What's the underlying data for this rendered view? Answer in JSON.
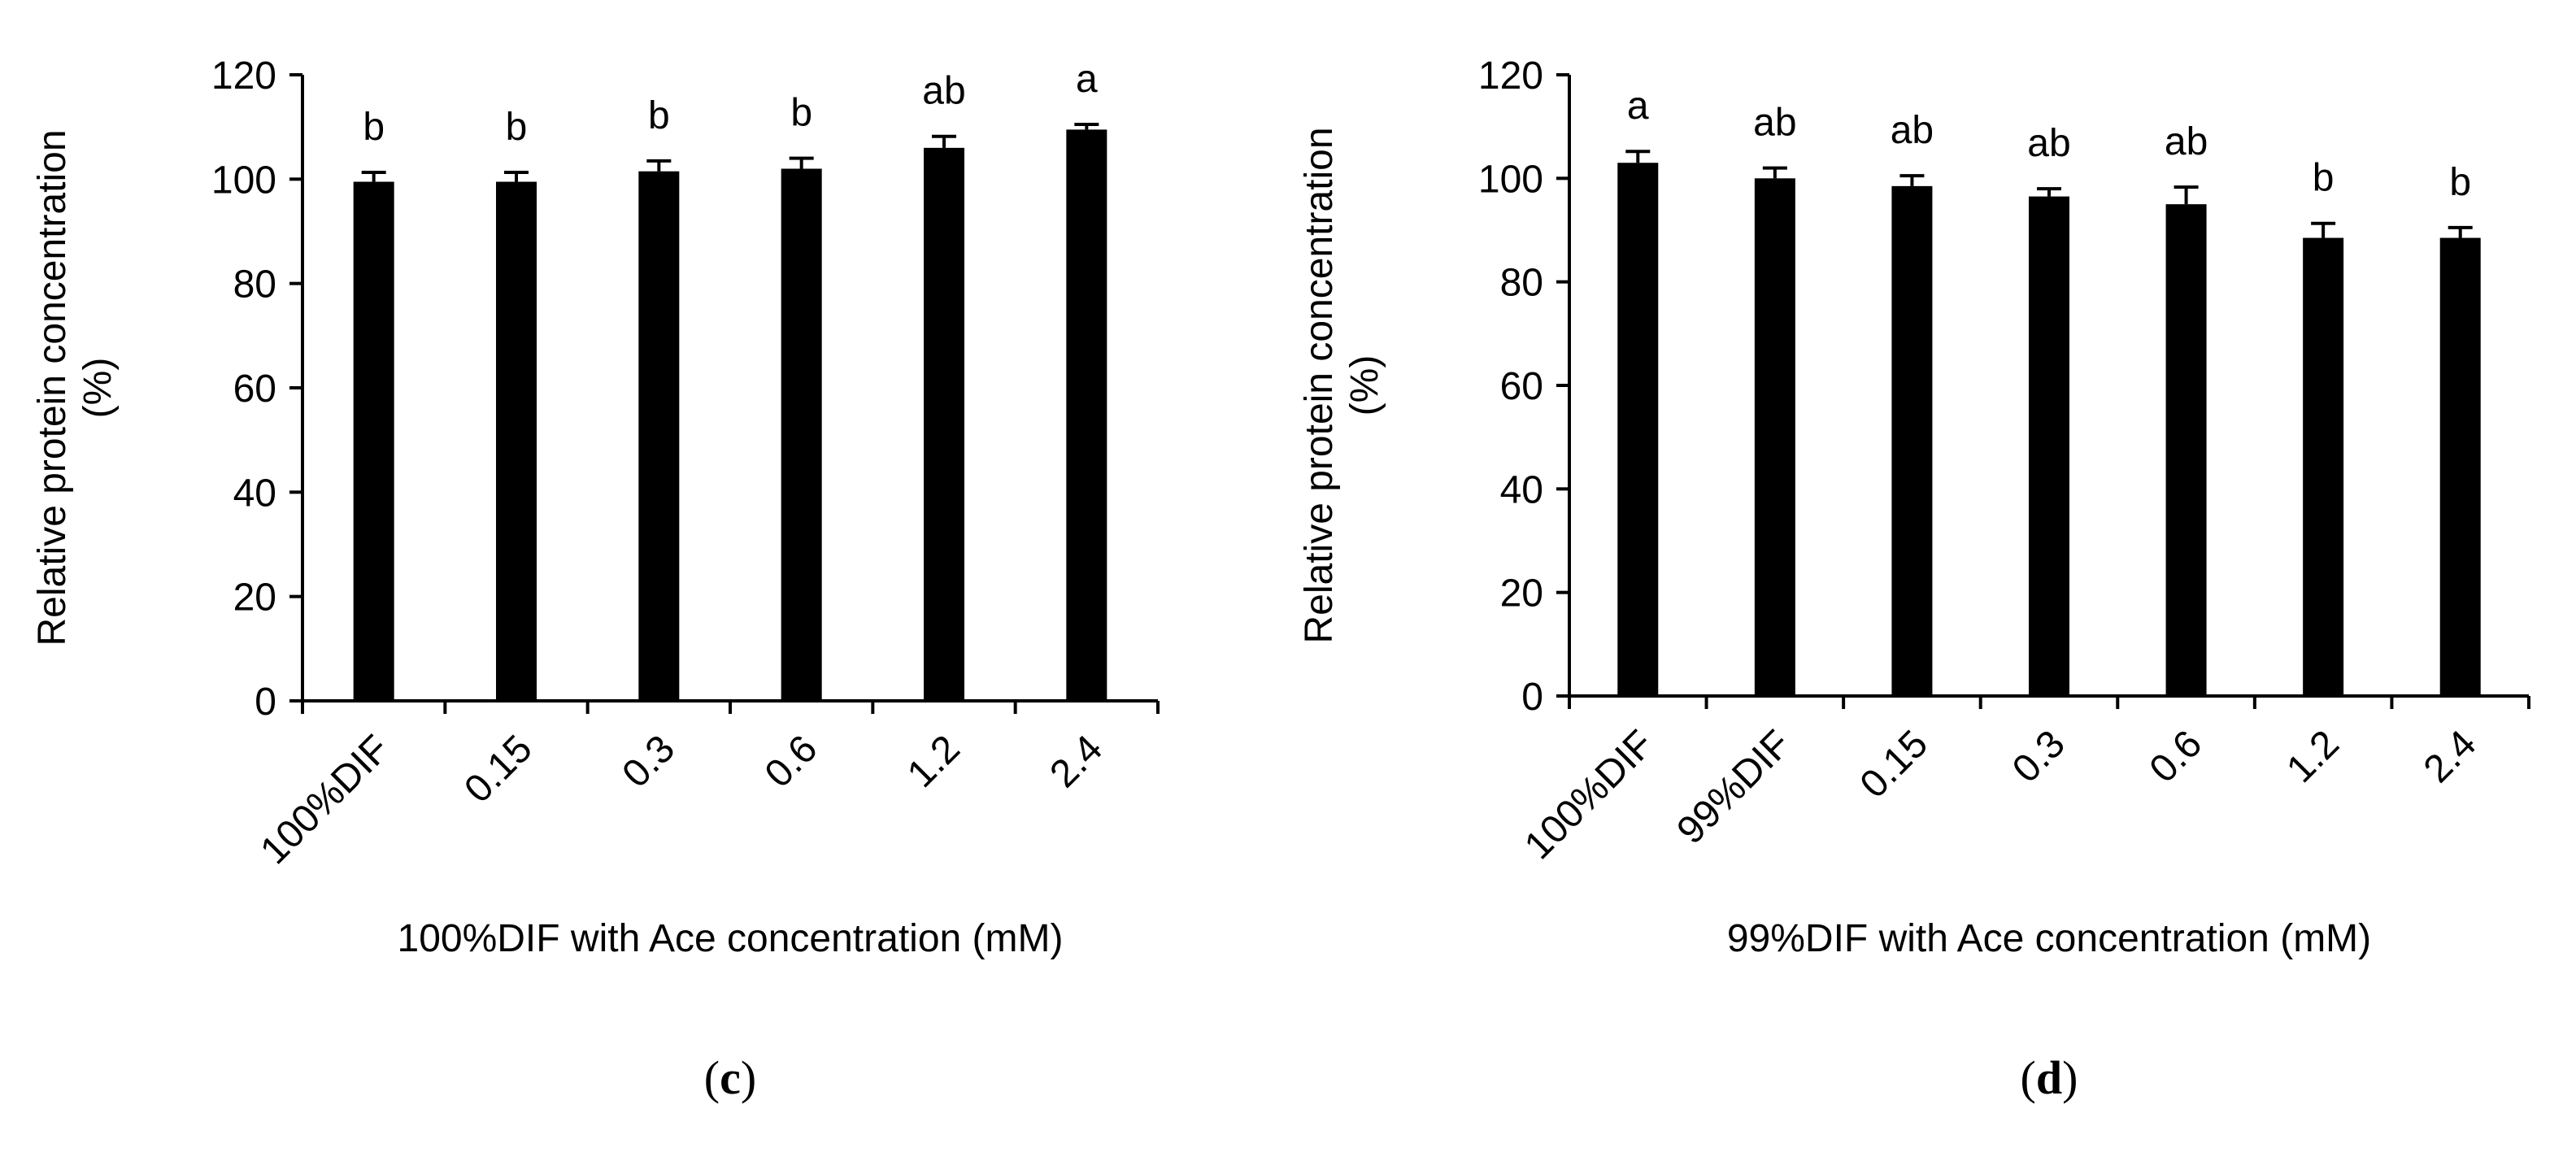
{
  "chart_data": [
    {
      "panel_label": "(c)",
      "panel_letter": "c",
      "type": "bar",
      "xlabel": "100%DIF with Ace concentration (mM)",
      "ylabel_line1": "Relative protein concentration",
      "ylabel_line2": "(%)",
      "ylim": [
        0,
        120
      ],
      "yticks": [
        0,
        20,
        40,
        60,
        80,
        100,
        120
      ],
      "categories": [
        "100%DIF",
        "0.15",
        "0.3",
        "0.6",
        "1.2",
        "2.4"
      ],
      "values": [
        99.5,
        99.5,
        101.5,
        102.0,
        106.0,
        109.5
      ],
      "errors": [
        1.8,
        1.8,
        2.0,
        2.0,
        2.2,
        1.0
      ],
      "significance": [
        "b",
        "b",
        "b",
        "b",
        "ab",
        "a"
      ],
      "bar_color": "#000000",
      "grid": false
    },
    {
      "panel_label": "(d)",
      "panel_letter": "d",
      "type": "bar",
      "xlabel": "99%DIF with Ace concentration (mM)",
      "ylabel_line1": "Relative protein concentration",
      "ylabel_line2": "(%)",
      "ylim": [
        0,
        120
      ],
      "yticks": [
        0,
        20,
        40,
        60,
        80,
        100,
        120
      ],
      "categories": [
        "100%DIF",
        "99%DIF",
        "0.15",
        "0.3",
        "0.6",
        "1.2",
        "2.4"
      ],
      "values": [
        103.0,
        100.0,
        98.5,
        96.5,
        95.0,
        88.5,
        88.5
      ],
      "errors": [
        2.2,
        2.0,
        2.0,
        1.5,
        3.3,
        2.8,
        2.0
      ],
      "significance": [
        "a",
        "ab",
        "ab",
        "ab",
        "ab",
        "b",
        "b"
      ],
      "bar_color": "#000000",
      "grid": false
    }
  ]
}
